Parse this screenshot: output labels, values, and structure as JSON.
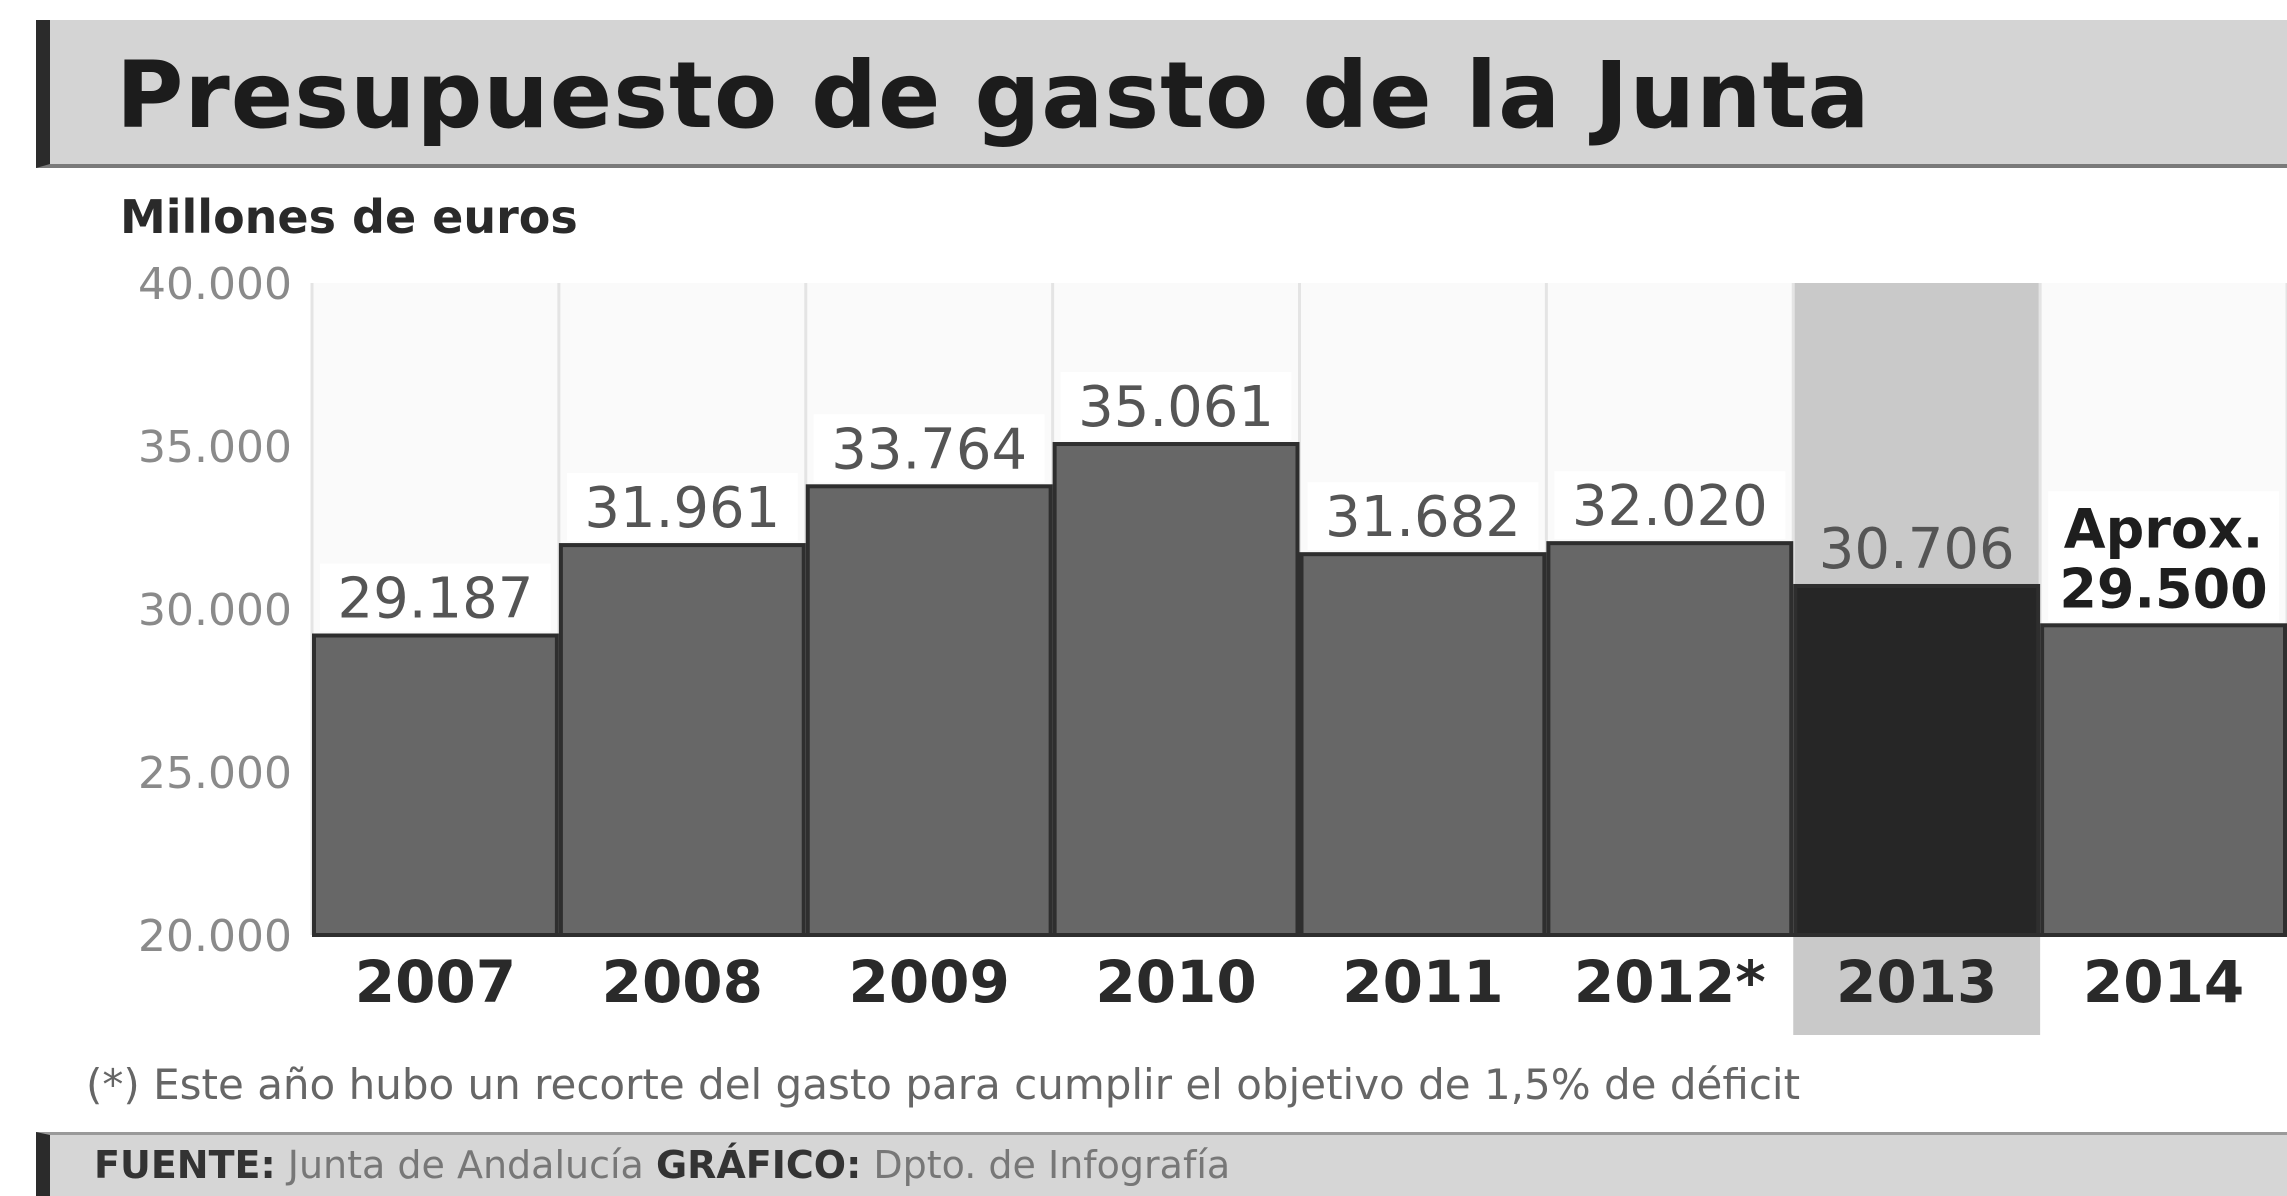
{
  "header": {
    "title": "Presupuesto de gasto de la Junta",
    "unit_label": "Millones de euros"
  },
  "note": "(*) Este año hubo un recorte del gasto para cumplir el objetivo de 1,5% de déficit",
  "footer": {
    "source_label": "FUENTE:",
    "source_value": "Junta de Andalucía",
    "graphic_label": "GRÁFICO:",
    "graphic_value": "Dpto. de Infografía"
  },
  "colors": {
    "bar": "#676767",
    "highlight_bar": "#262626",
    "highlight_band": "#c9c9c9",
    "label_bg": "#ffffff"
  },
  "chart_data": {
    "type": "bar",
    "categories": [
      "2007",
      "2008",
      "2009",
      "2010",
      "2011",
      "2012*",
      "2013",
      "2014"
    ],
    "values": [
      29187,
      31961,
      33764,
      35061,
      31682,
      32020,
      30706,
      29500
    ],
    "value_labels": [
      "29.187",
      "31.961",
      "33.764",
      "35.061",
      "31.682",
      "32.020",
      "30.706",
      "29.500"
    ],
    "value_label_prefix": {
      "2014": "Aprox."
    },
    "highlight": "2013",
    "ylim": [
      20000,
      40000
    ],
    "yticks": [
      20000,
      25000,
      30000,
      35000,
      40000
    ],
    "ytick_labels": [
      "20.000",
      "25.000",
      "30.000",
      "35.000",
      "40.000"
    ],
    "grid": "vertical separators"
  }
}
